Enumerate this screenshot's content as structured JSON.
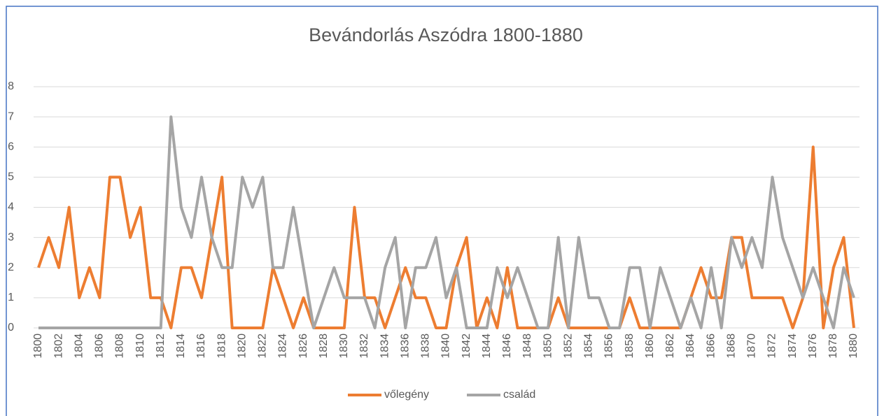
{
  "chart_data": {
    "type": "line",
    "title": "Bevándorlás Aszódra 1800-1880",
    "x": [
      1800,
      1801,
      1802,
      1803,
      1804,
      1805,
      1806,
      1807,
      1808,
      1809,
      1810,
      1811,
      1812,
      1813,
      1814,
      1815,
      1816,
      1817,
      1818,
      1819,
      1820,
      1821,
      1822,
      1823,
      1824,
      1825,
      1826,
      1827,
      1828,
      1829,
      1830,
      1831,
      1832,
      1833,
      1834,
      1835,
      1836,
      1837,
      1838,
      1839,
      1840,
      1841,
      1842,
      1843,
      1844,
      1845,
      1846,
      1847,
      1848,
      1849,
      1850,
      1851,
      1852,
      1853,
      1854,
      1855,
      1856,
      1857,
      1858,
      1859,
      1860,
      1861,
      1862,
      1863,
      1864,
      1865,
      1866,
      1867,
      1868,
      1869,
      1870,
      1871,
      1872,
      1873,
      1874,
      1875,
      1876,
      1877,
      1878,
      1879,
      1880
    ],
    "series": [
      {
        "name": "vőlegény",
        "color": "#ed7d31",
        "values": [
          2,
          3,
          2,
          4,
          1,
          2,
          1,
          5,
          5,
          3,
          4,
          1,
          1,
          0,
          2,
          2,
          1,
          3,
          5,
          0,
          0,
          0,
          0,
          2,
          1,
          0,
          1,
          0,
          0,
          0,
          0,
          4,
          1,
          1,
          0,
          1,
          2,
          1,
          1,
          0,
          0,
          2,
          3,
          0,
          1,
          0,
          2,
          0,
          0,
          0,
          0,
          1,
          0,
          0,
          0,
          0,
          0,
          0,
          1,
          0,
          0,
          0,
          0,
          0,
          1,
          2,
          1,
          1,
          3,
          3,
          1,
          1,
          1,
          1,
          0,
          1,
          6,
          0,
          2,
          3,
          0
        ]
      },
      {
        "name": "család",
        "color": "#a5a5a5",
        "values": [
          0,
          0,
          0,
          0,
          0,
          0,
          0,
          0,
          0,
          0,
          0,
          0,
          0,
          7,
          4,
          3,
          5,
          3,
          2,
          2,
          5,
          4,
          5,
          2,
          2,
          4,
          2,
          0,
          1,
          2,
          1,
          1,
          1,
          0,
          2,
          3,
          0,
          2,
          2,
          3,
          1,
          2,
          0,
          0,
          0,
          2,
          1,
          2,
          1,
          0,
          0,
          3,
          0,
          3,
          1,
          1,
          0,
          0,
          2,
          2,
          0,
          2,
          1,
          0,
          1,
          0,
          2,
          0,
          3,
          2,
          3,
          2,
          5,
          3,
          2,
          1,
          2,
          1,
          0,
          2,
          1
        ]
      }
    ],
    "xlim": [
      1800,
      1880
    ],
    "xticks": [
      1800,
      1802,
      1804,
      1806,
      1808,
      1810,
      1812,
      1814,
      1816,
      1818,
      1820,
      1822,
      1824,
      1826,
      1828,
      1830,
      1832,
      1834,
      1836,
      1838,
      1840,
      1842,
      1844,
      1846,
      1848,
      1850,
      1852,
      1854,
      1856,
      1858,
      1860,
      1862,
      1864,
      1866,
      1868,
      1870,
      1872,
      1874,
      1876,
      1878,
      1880
    ],
    "ylim": [
      0,
      8
    ],
    "yticks": [
      0,
      1,
      2,
      3,
      4,
      5,
      6,
      7,
      8
    ],
    "grid": true,
    "legend": "bottom"
  }
}
